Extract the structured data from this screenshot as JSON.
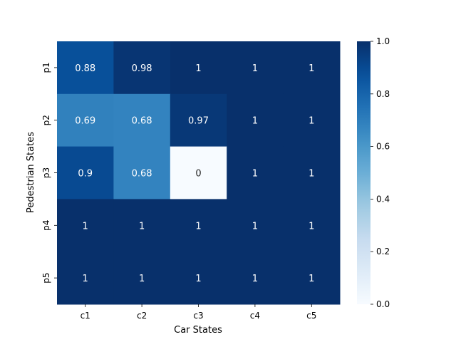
{
  "chart_data": {
    "type": "heatmap",
    "title": "",
    "xlabel": "Car States",
    "ylabel": "Pedestrian States",
    "x_categories": [
      "c1",
      "c2",
      "c3",
      "c4",
      "c5"
    ],
    "y_categories": [
      "p1",
      "p2",
      "p3",
      "p4",
      "p5"
    ],
    "values": [
      [
        0.88,
        0.98,
        1,
        1,
        1
      ],
      [
        0.69,
        0.68,
        0.97,
        1,
        1
      ],
      [
        0.9,
        0.68,
        0,
        1,
        1
      ],
      [
        1,
        1,
        1,
        1,
        1
      ],
      [
        1,
        1,
        1,
        1,
        1
      ]
    ],
    "cell_labels": [
      [
        "0.88",
        "0.98",
        "1",
        "1",
        "1"
      ],
      [
        "0.69",
        "0.68",
        "0.97",
        "1",
        "1"
      ],
      [
        "0.9",
        "0.68",
        "0",
        "1",
        "1"
      ],
      [
        "1",
        "1",
        "1",
        "1",
        "1"
      ],
      [
        "1",
        "1",
        "1",
        "1",
        "1"
      ]
    ],
    "colormap": "Blues",
    "vmin": 0,
    "vmax": 1,
    "colorbar": {
      "ticks": [
        0.0,
        0.2,
        0.4,
        0.6,
        0.8,
        1.0
      ],
      "tick_labels": [
        "0.0",
        "0.2",
        "0.4",
        "0.6",
        "0.8",
        "1.0"
      ]
    },
    "grid": false
  }
}
